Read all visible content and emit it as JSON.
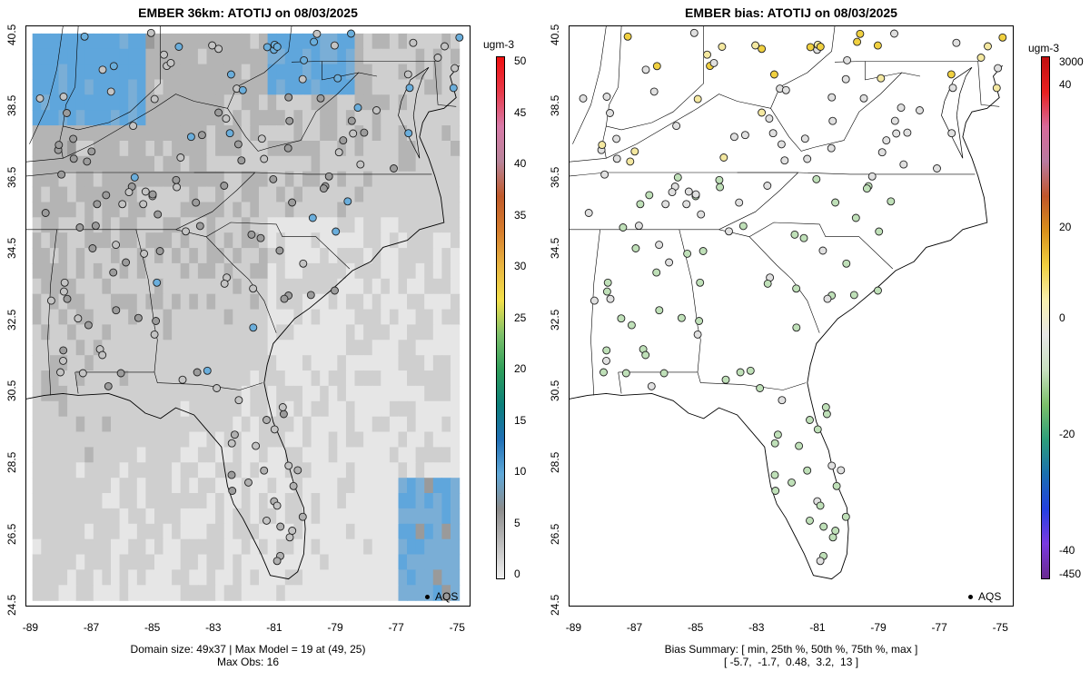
{
  "left_panel": {
    "title": "EMBER 36km: ATOTIJ on 08/03/2025",
    "footer_line1": "Domain size: 49x37 | Max Model = 19 at (49, 25)",
    "footer_line2": "Max Obs: 16",
    "colorbar": {
      "unit": "ugm-3",
      "ticks": [
        "0",
        "5",
        "10",
        "15",
        "20",
        "25",
        "30",
        "35",
        "40",
        "45",
        "50"
      ],
      "colors": [
        "#f0f0f0",
        "#bdbdbd",
        "#8c8c8c",
        "#5fa8d8",
        "#1f6fb5",
        "#0b7f7a",
        "#2e9e5a",
        "#7cc06a",
        "#f2e04a",
        "#e8b440",
        "#d67c2c",
        "#c05a2a",
        "#b8849a",
        "#d87aa8",
        "#e83a4a",
        "#f01010"
      ]
    },
    "legend": "AQS"
  },
  "right_panel": {
    "title": "EMBER bias: ATOTIJ on 08/03/2025",
    "footer_line1": "Bias Summary: [ min, 25th %, 50th %, 75th %, max ]",
    "footer_line2": "[ -5.7,  -1.7,  0.48,  3.2,  13 ]",
    "colorbar": {
      "unit": "ugm-3",
      "ticks": [
        "3000",
        "40",
        "20",
        "0",
        "-20",
        "-40",
        "-450"
      ],
      "colors": [
        "#c01010",
        "#e82020",
        "#d86a9a",
        "#b87aa0",
        "#c0562a",
        "#d8901c",
        "#f0d040",
        "#f8f0b0",
        "#e6e6e6",
        "#c8e0c0",
        "#7cc06a",
        "#2e9e7a",
        "#1a6fb0",
        "#2440e0",
        "#7a3ae0",
        "#6a2a90"
      ]
    },
    "legend": "AQS"
  },
  "axes": {
    "x_ticks": [
      "-89",
      "-87",
      "-85",
      "-83",
      "-81",
      "-79",
      "-77",
      "-75"
    ],
    "y_ticks": [
      "24.5",
      "26.5",
      "28.5",
      "30.5",
      "32.5",
      "34.5",
      "36.5",
      "38.5",
      "40.5"
    ],
    "lon_range": [
      -89.2,
      -74.6
    ],
    "lat_range": [
      24.4,
      40.7
    ]
  }
}
